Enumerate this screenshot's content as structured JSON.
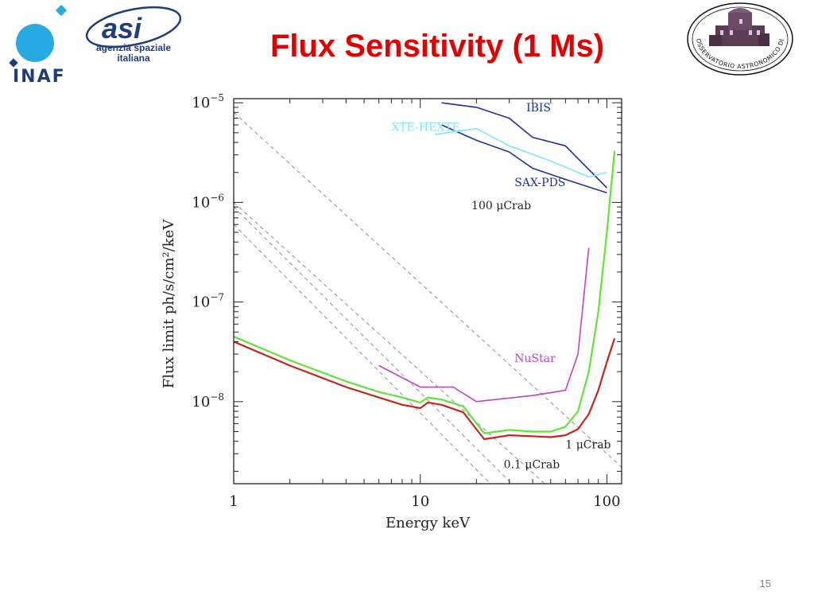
{
  "slide": {
    "title": "Flux Sensitivity (1 Ms)",
    "page_number": "15"
  },
  "logos": {
    "inaf": {
      "text": "INAF",
      "colors": {
        "primary": "#27a9e1",
        "text": "#1f3d7a"
      }
    },
    "asi": {
      "line1": "agenzia spaziale",
      "line2": "italiana",
      "color": "#1f3d7a"
    },
    "brera": {
      "text": "OSSERVATORIO ASTRONOMICO DI BRERA",
      "color": "#111111"
    }
  },
  "chart_data": {
    "type": "line",
    "xlabel": "Energy keV",
    "ylabel": "Flux limit ph/s/cm²/keV",
    "xscale": "log",
    "yscale": "log",
    "xlim": [
      1,
      120
    ],
    "ylim": [
      1.5e-09,
      1.1e-05
    ],
    "x_ticks": [
      {
        "value": 1,
        "label": "1"
      },
      {
        "value": 10,
        "label": "10"
      },
      {
        "value": 100,
        "label": "100"
      }
    ],
    "y_ticks": [
      {
        "value": 1e-08,
        "base": "10",
        "exp": "−8"
      },
      {
        "value": 1e-07,
        "base": "10",
        "exp": "−7"
      },
      {
        "value": 1e-06,
        "base": "10",
        "exp": "−6"
      },
      {
        "value": 1e-05,
        "base": "10",
        "exp": "−5"
      }
    ],
    "grid": false,
    "series": [
      {
        "name": "IBIS",
        "color": "#1f2fa0",
        "x": [
          13,
          20,
          30,
          40,
          60,
          100
        ],
        "y": [
          1e-05,
          9e-06,
          7e-06,
          4.5e-06,
          3.7e-06,
          1.4e-06
        ]
      },
      {
        "name": "SAX-PDS",
        "color": "#1f2fa0",
        "x": [
          13,
          20,
          30,
          40,
          60,
          100
        ],
        "y": [
          6e-06,
          4.2e-06,
          3.2e-06,
          2.2e-06,
          1.7e-06,
          1.25e-06
        ]
      },
      {
        "name": "XTE-HEXTE",
        "color": "#7fe8f0",
        "x": [
          12,
          20,
          30,
          50,
          80,
          100
        ],
        "y": [
          4.8e-06,
          5.5e-06,
          3.7e-06,
          2.6e-06,
          1.8e-06,
          2e-06
        ]
      },
      {
        "name": "NuStar",
        "color": "#c040c8",
        "x": [
          6,
          10,
          15,
          20,
          40,
          60,
          70,
          80
        ],
        "y": [
          2.3e-08,
          1.4e-08,
          1.4e-08,
          1e-08,
          1.15e-08,
          1.3e-08,
          3e-08,
          3.5e-07
        ]
      },
      {
        "name": "",
        "color": "#66e03a",
        "x": [
          1,
          2,
          4,
          6,
          8,
          10,
          11,
          13,
          17,
          22,
          30,
          40,
          50,
          60,
          70,
          80,
          90,
          100,
          110
        ],
        "y": [
          4.5e-08,
          2.6e-08,
          1.6e-08,
          1.25e-08,
          1.1e-08,
          9.8e-09,
          1.1e-08,
          1.05e-08,
          9e-09,
          4.8e-09,
          5.2e-09,
          5e-09,
          5e-09,
          5.6e-09,
          8e-09,
          2e-08,
          8e-08,
          5e-07,
          3.3e-06
        ]
      },
      {
        "name": "",
        "color": "#c0281c",
        "x": [
          1,
          2,
          4,
          6,
          8,
          10,
          11,
          13,
          17,
          22,
          30,
          40,
          50,
          60,
          70,
          80,
          90,
          100,
          110
        ],
        "y": [
          4e-08,
          2.3e-08,
          1.4e-08,
          1.1e-08,
          9.3e-09,
          8.6e-09,
          9.8e-09,
          9.3e-09,
          7.8e-09,
          4.2e-09,
          4.6e-09,
          4.5e-09,
          4.4e-09,
          4.6e-09,
          5.3e-09,
          7.5e-09,
          1.3e-08,
          2.5e-08,
          4.3e-08
        ]
      }
    ],
    "reference_lines": [
      {
        "label": "100 μCrab",
        "color": "#999999",
        "x": [
          1,
          120
        ],
        "y": [
          8e-06,
          2.2e-09
        ]
      },
      {
        "label": "",
        "color": "#999999",
        "x": [
          1,
          120
        ],
        "y": [
          1e-06,
          3e-10
        ]
      },
      {
        "label": "1 μCrab",
        "color": "#999999",
        "x": [
          1,
          120
        ],
        "y": [
          9e-07,
          1.2e-10
        ]
      },
      {
        "label": "0.1 μCrab",
        "color": "#999999",
        "x": [
          1,
          120
        ],
        "y": [
          6e-07,
          7e-11
        ]
      }
    ],
    "annotations": [
      {
        "text": "IBIS",
        "x": 37,
        "y": 8.2e-06,
        "color": "#1f2fa0"
      },
      {
        "text": "XTE-HEXTE",
        "x": 7,
        "y": 5.2e-06,
        "color": "#7fe8f0"
      },
      {
        "text": "SAX-PDS",
        "x": 32,
        "y": 1.45e-06,
        "color": "#1f2fa0"
      },
      {
        "text": "100 μCrab",
        "x": 18.8,
        "y": 8.5e-07,
        "color": "#222222"
      },
      {
        "text": "NuStar",
        "x": 32,
        "y": 2.5e-08,
        "color": "#c040c8"
      },
      {
        "text": "1 μCrab",
        "x": 60,
        "y": 3.4e-09,
        "color": "#222222"
      },
      {
        "text": "0.1 μCrab",
        "x": 28,
        "y": 2.15e-09,
        "color": "#222222"
      }
    ]
  }
}
